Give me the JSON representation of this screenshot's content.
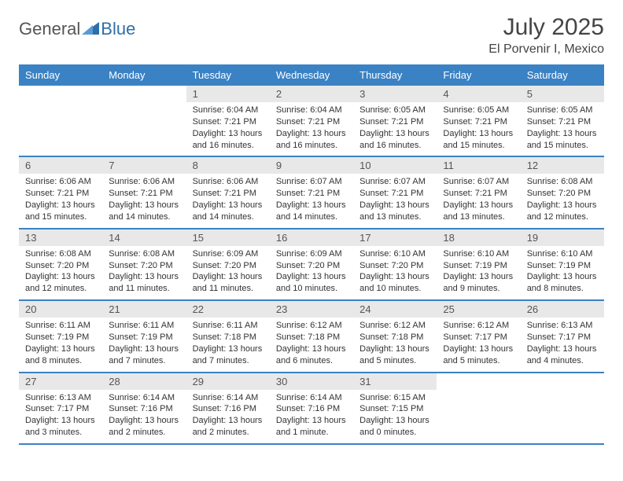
{
  "logo": {
    "text_general": "General",
    "text_blue": "Blue",
    "triangle_color": "#2f6fa7"
  },
  "header": {
    "month_title": "July 2025",
    "location": "El Porvenir I, Mexico"
  },
  "colors": {
    "header_bg": "#3b82c4",
    "header_text": "#ffffff",
    "daynum_bg": "#e8e8e8",
    "border": "#3b82c4",
    "body_text": "#333333"
  },
  "weekdays": [
    "Sunday",
    "Monday",
    "Tuesday",
    "Wednesday",
    "Thursday",
    "Friday",
    "Saturday"
  ],
  "weeks": [
    [
      null,
      null,
      {
        "n": "1",
        "sr": "6:04 AM",
        "ss": "7:21 PM",
        "dl": "13 hours and 16 minutes."
      },
      {
        "n": "2",
        "sr": "6:04 AM",
        "ss": "7:21 PM",
        "dl": "13 hours and 16 minutes."
      },
      {
        "n": "3",
        "sr": "6:05 AM",
        "ss": "7:21 PM",
        "dl": "13 hours and 16 minutes."
      },
      {
        "n": "4",
        "sr": "6:05 AM",
        "ss": "7:21 PM",
        "dl": "13 hours and 15 minutes."
      },
      {
        "n": "5",
        "sr": "6:05 AM",
        "ss": "7:21 PM",
        "dl": "13 hours and 15 minutes."
      }
    ],
    [
      {
        "n": "6",
        "sr": "6:06 AM",
        "ss": "7:21 PM",
        "dl": "13 hours and 15 minutes."
      },
      {
        "n": "7",
        "sr": "6:06 AM",
        "ss": "7:21 PM",
        "dl": "13 hours and 14 minutes."
      },
      {
        "n": "8",
        "sr": "6:06 AM",
        "ss": "7:21 PM",
        "dl": "13 hours and 14 minutes."
      },
      {
        "n": "9",
        "sr": "6:07 AM",
        "ss": "7:21 PM",
        "dl": "13 hours and 14 minutes."
      },
      {
        "n": "10",
        "sr": "6:07 AM",
        "ss": "7:21 PM",
        "dl": "13 hours and 13 minutes."
      },
      {
        "n": "11",
        "sr": "6:07 AM",
        "ss": "7:21 PM",
        "dl": "13 hours and 13 minutes."
      },
      {
        "n": "12",
        "sr": "6:08 AM",
        "ss": "7:20 PM",
        "dl": "13 hours and 12 minutes."
      }
    ],
    [
      {
        "n": "13",
        "sr": "6:08 AM",
        "ss": "7:20 PM",
        "dl": "13 hours and 12 minutes."
      },
      {
        "n": "14",
        "sr": "6:08 AM",
        "ss": "7:20 PM",
        "dl": "13 hours and 11 minutes."
      },
      {
        "n": "15",
        "sr": "6:09 AM",
        "ss": "7:20 PM",
        "dl": "13 hours and 11 minutes."
      },
      {
        "n": "16",
        "sr": "6:09 AM",
        "ss": "7:20 PM",
        "dl": "13 hours and 10 minutes."
      },
      {
        "n": "17",
        "sr": "6:10 AM",
        "ss": "7:20 PM",
        "dl": "13 hours and 10 minutes."
      },
      {
        "n": "18",
        "sr": "6:10 AM",
        "ss": "7:19 PM",
        "dl": "13 hours and 9 minutes."
      },
      {
        "n": "19",
        "sr": "6:10 AM",
        "ss": "7:19 PM",
        "dl": "13 hours and 8 minutes."
      }
    ],
    [
      {
        "n": "20",
        "sr": "6:11 AM",
        "ss": "7:19 PM",
        "dl": "13 hours and 8 minutes."
      },
      {
        "n": "21",
        "sr": "6:11 AM",
        "ss": "7:19 PM",
        "dl": "13 hours and 7 minutes."
      },
      {
        "n": "22",
        "sr": "6:11 AM",
        "ss": "7:18 PM",
        "dl": "13 hours and 7 minutes."
      },
      {
        "n": "23",
        "sr": "6:12 AM",
        "ss": "7:18 PM",
        "dl": "13 hours and 6 minutes."
      },
      {
        "n": "24",
        "sr": "6:12 AM",
        "ss": "7:18 PM",
        "dl": "13 hours and 5 minutes."
      },
      {
        "n": "25",
        "sr": "6:12 AM",
        "ss": "7:17 PM",
        "dl": "13 hours and 5 minutes."
      },
      {
        "n": "26",
        "sr": "6:13 AM",
        "ss": "7:17 PM",
        "dl": "13 hours and 4 minutes."
      }
    ],
    [
      {
        "n": "27",
        "sr": "6:13 AM",
        "ss": "7:17 PM",
        "dl": "13 hours and 3 minutes."
      },
      {
        "n": "28",
        "sr": "6:14 AM",
        "ss": "7:16 PM",
        "dl": "13 hours and 2 minutes."
      },
      {
        "n": "29",
        "sr": "6:14 AM",
        "ss": "7:16 PM",
        "dl": "13 hours and 2 minutes."
      },
      {
        "n": "30",
        "sr": "6:14 AM",
        "ss": "7:16 PM",
        "dl": "13 hours and 1 minute."
      },
      {
        "n": "31",
        "sr": "6:15 AM",
        "ss": "7:15 PM",
        "dl": "13 hours and 0 minutes."
      },
      null,
      null
    ]
  ],
  "labels": {
    "sunrise": "Sunrise:",
    "sunset": "Sunset:",
    "daylight": "Daylight:"
  }
}
